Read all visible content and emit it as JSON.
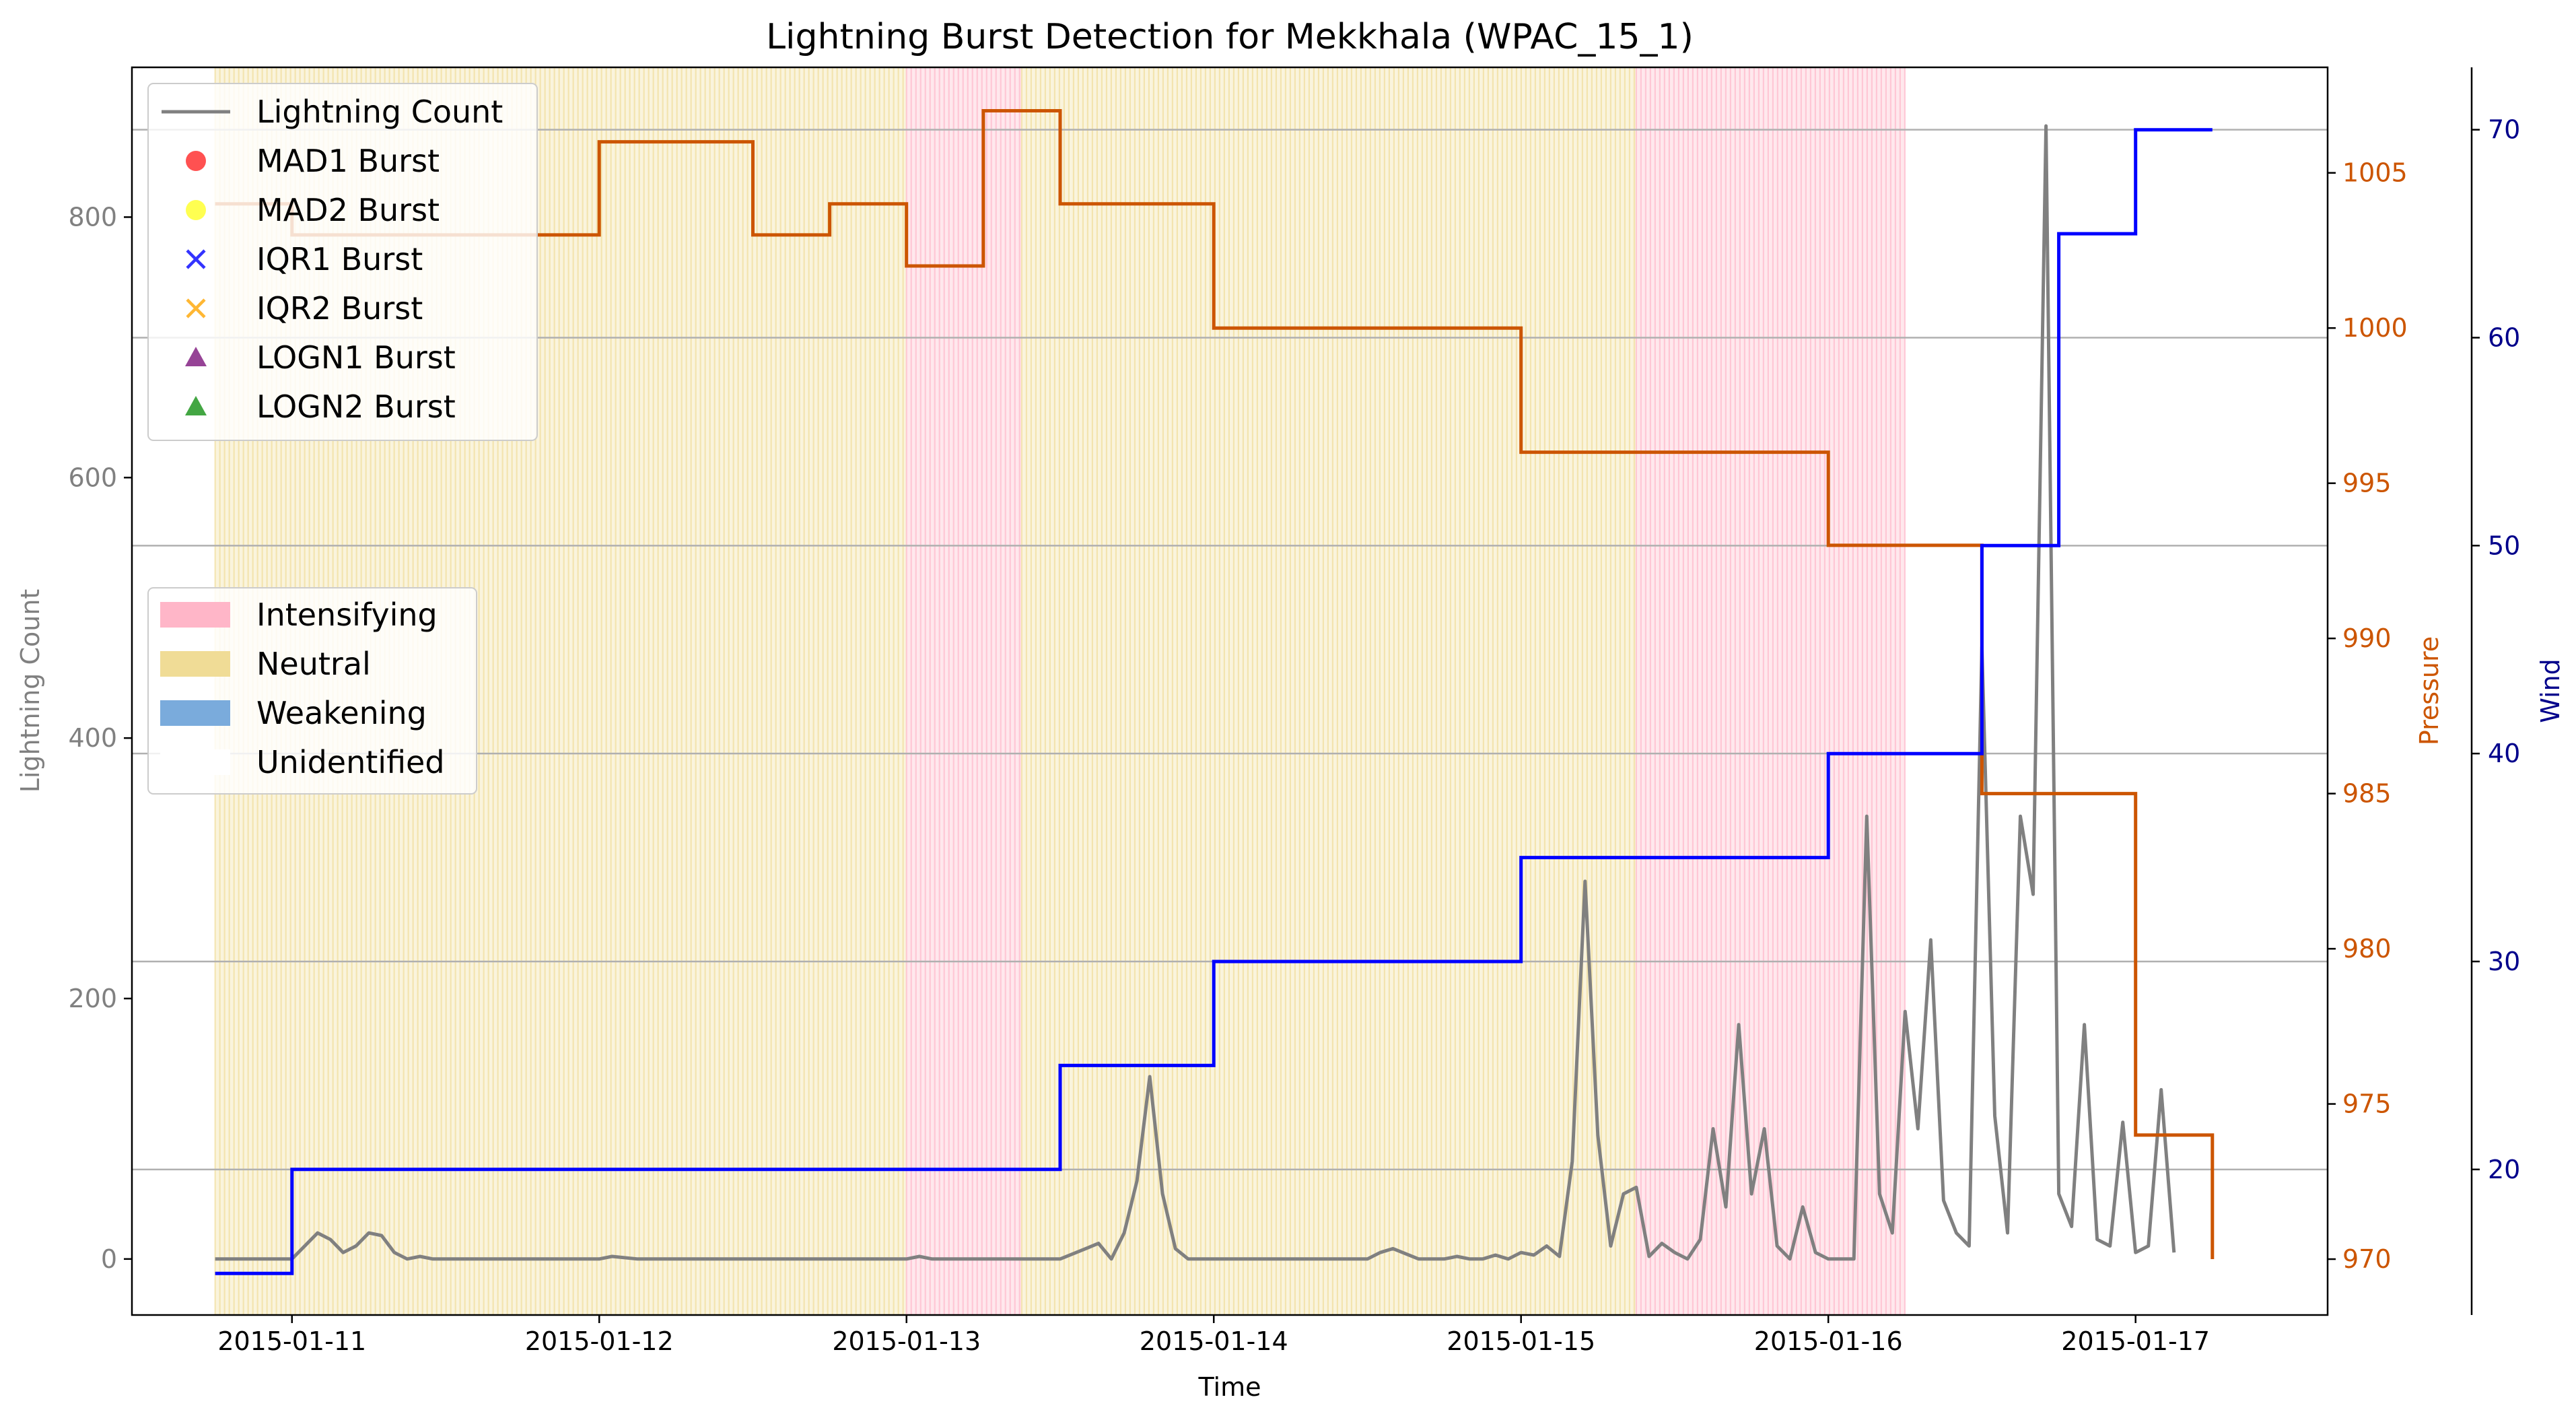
{
  "chart_data": {
    "type": "line",
    "title": "Lightning Burst Detection for Mekkhala (WPAC_15_1)",
    "xlabel": "Time",
    "ylabel": "Lightning Count",
    "ylabel_right": "Pressure",
    "ylabel_right2": "Wind",
    "x_ticks": [
      "2015-01-11",
      "2015-01-12",
      "2015-01-13",
      "2015-01-14",
      "2015-01-15",
      "2015-01-16",
      "2015-01-17"
    ],
    "xlim": [
      "2015-01-10T11:30",
      "2015-01-17T15:00"
    ],
    "ylim": [
      -43,
      915
    ],
    "ylim_right": [
      968.2,
      1008.4
    ],
    "ylim_right2": [
      13.0,
      73.0
    ],
    "y_ticks": [
      0,
      200,
      400,
      600,
      800
    ],
    "y_ticks_right": [
      970,
      975,
      980,
      985,
      990,
      995,
      1000,
      1005
    ],
    "y_ticks_right2": [
      20,
      30,
      40,
      50,
      60,
      70
    ],
    "grid": "horizontal lines at wind ticks",
    "colors": {
      "lightning": "#808080",
      "pressure": "#cc5500",
      "wind": "#0000ff",
      "intensifying": "#ffb6c8",
      "neutral": "#f0dc96",
      "weakening": "#7aabdc",
      "grid": "#b0b0b0",
      "pressure_axis": "#cc5500",
      "wind_axis": "#00008b",
      "left_axis": "#808080"
    },
    "legend_top": {
      "placement": "upper-left",
      "items": [
        {
          "label": "Lightning Count",
          "marker": "line",
          "color": "#808080"
        },
        {
          "label": "MAD1 Burst",
          "marker": "circle",
          "color": "#ff3333"
        },
        {
          "label": "MAD2 Burst",
          "marker": "circle",
          "color": "#ffff33"
        },
        {
          "label": "IQR1 Burst",
          "marker": "x",
          "color": "#3333ff"
        },
        {
          "label": "IQR2 Burst",
          "marker": "x",
          "color": "#ffb733"
        },
        {
          "label": "LOGN1 Burst",
          "marker": "triangle",
          "color": "#8b2f8b"
        },
        {
          "label": "LOGN2 Burst",
          "marker": "triangle",
          "color": "#2f9c2f"
        }
      ]
    },
    "legend_bottom": {
      "placement": "center-left",
      "items": [
        {
          "label": "Intensifying",
          "color": "#ffb6c8"
        },
        {
          "label": "Neutral",
          "color": "#f0dc96"
        },
        {
          "label": "Weakening",
          "color": "#7aabdc"
        },
        {
          "label": "Unidentified",
          "color": "#ffffff"
        }
      ]
    },
    "spans": [
      {
        "start": "2015-01-10T18:00",
        "end": "2015-01-13T00:00",
        "phase": "Neutral"
      },
      {
        "start": "2015-01-13T00:00",
        "end": "2015-01-13T09:00",
        "phase": "Intensifying"
      },
      {
        "start": "2015-01-13T09:00",
        "end": "2015-01-15T09:00",
        "phase": "Neutral"
      },
      {
        "start": "2015-01-15T09:00",
        "end": "2015-01-16T06:00",
        "phase": "Intensifying"
      }
    ],
    "series": [
      {
        "name": "Lightning Count",
        "axis": "left",
        "x": [
          "2015-01-10T18:00",
          "2015-01-11T00:00",
          "2015-01-11T02:00",
          "2015-01-11T03:00",
          "2015-01-11T04:00",
          "2015-01-11T05:00",
          "2015-01-11T06:00",
          "2015-01-11T07:00",
          "2015-01-11T08:00",
          "2015-01-11T09:00",
          "2015-01-11T10:00",
          "2015-01-11T11:00",
          "2015-01-11T12:00",
          "2015-01-11T13:00",
          "2015-01-11T14:00",
          "2015-01-11T16:00",
          "2015-01-12T00:00",
          "2015-01-12T01:00",
          "2015-01-12T03:00",
          "2015-01-13T00:00",
          "2015-01-13T01:00",
          "2015-01-13T02:00",
          "2015-01-13T04:00",
          "2015-01-13T12:00",
          "2015-01-13T14:00",
          "2015-01-13T15:00",
          "2015-01-13T16:00",
          "2015-01-13T17:00",
          "2015-01-13T18:00",
          "2015-01-13T19:00",
          "2015-01-13T20:00",
          "2015-01-13T21:00",
          "2015-01-13T22:00",
          "2015-01-13T23:00",
          "2015-01-14T00:00",
          "2015-01-14T02:00",
          "2015-01-14T06:00",
          "2015-01-14T10:00",
          "2015-01-14T12:00",
          "2015-01-14T13:00",
          "2015-01-14T14:00",
          "2015-01-14T16:00",
          "2015-01-14T17:00",
          "2015-01-14T18:00",
          "2015-01-14T19:00",
          "2015-01-14T20:00",
          "2015-01-14T21:00",
          "2015-01-14T22:00",
          "2015-01-14T23:00",
          "2015-01-15T00:00",
          "2015-01-15T01:00",
          "2015-01-15T02:00",
          "2015-01-15T03:00",
          "2015-01-15T04:00",
          "2015-01-15T05:00",
          "2015-01-15T06:00",
          "2015-01-15T07:00",
          "2015-01-15T08:00",
          "2015-01-15T09:00",
          "2015-01-15T10:00",
          "2015-01-15T11:00",
          "2015-01-15T12:00",
          "2015-01-15T13:00",
          "2015-01-15T14:00",
          "2015-01-15T15:00",
          "2015-01-15T16:00",
          "2015-01-15T17:00",
          "2015-01-15T18:00",
          "2015-01-15T19:00",
          "2015-01-15T20:00",
          "2015-01-15T21:00",
          "2015-01-15T22:00",
          "2015-01-15T23:00",
          "2015-01-16T00:00",
          "2015-01-16T01:00",
          "2015-01-16T02:00",
          "2015-01-16T03:00",
          "2015-01-16T04:00",
          "2015-01-16T05:00",
          "2015-01-16T06:00",
          "2015-01-16T07:00",
          "2015-01-16T08:00",
          "2015-01-16T09:00",
          "2015-01-16T10:00",
          "2015-01-16T11:00",
          "2015-01-16T12:00",
          "2015-01-16T13:00",
          "2015-01-16T14:00",
          "2015-01-16T15:00",
          "2015-01-16T16:00",
          "2015-01-16T17:00",
          "2015-01-16T18:00",
          "2015-01-16T19:00",
          "2015-01-16T20:00",
          "2015-01-16T21:00",
          "2015-01-16T22:00",
          "2015-01-16T23:00",
          "2015-01-17T00:00",
          "2015-01-17T01:00",
          "2015-01-17T02:00",
          "2015-01-17T03:00"
        ],
        "values": [
          0,
          0,
          20,
          15,
          5,
          10,
          20,
          18,
          5,
          0,
          2,
          0,
          0,
          0,
          0,
          0,
          0,
          2,
          0,
          0,
          2,
          0,
          0,
          0,
          8,
          12,
          0,
          20,
          60,
          140,
          50,
          8,
          0,
          0,
          0,
          0,
          0,
          0,
          0,
          5,
          8,
          0,
          0,
          0,
          2,
          0,
          0,
          3,
          0,
          5,
          3,
          10,
          2,
          75,
          290,
          95,
          10,
          50,
          55,
          2,
          12,
          5,
          0,
          15,
          100,
          40,
          180,
          50,
          100,
          10,
          0,
          40,
          5,
          0,
          0,
          0,
          340,
          50,
          20,
          190,
          100,
          245,
          45,
          20,
          10,
          470,
          110,
          20,
          340,
          280,
          870,
          50,
          25,
          180,
          15,
          10,
          105,
          5,
          10,
          130,
          5
        ]
      },
      {
        "name": "Pressure",
        "axis": "right",
        "step_x": [
          "2015-01-10T18:00",
          "2015-01-11T00:00",
          "2015-01-12T00:00",
          "2015-01-12T12:00",
          "2015-01-12T18:00",
          "2015-01-13T00:00",
          "2015-01-13T06:00",
          "2015-01-13T12:00",
          "2015-01-14T00:00",
          "2015-01-15T00:00",
          "2015-01-16T00:00",
          "2015-01-16T12:00",
          "2015-01-17T00:00",
          "2015-01-17T06:00"
        ],
        "values": [
          1004,
          1003,
          1006,
          1003,
          1004,
          1002,
          1007,
          1004,
          1000,
          996,
          993,
          985,
          974,
          970
        ]
      },
      {
        "name": "Wind",
        "axis": "right2",
        "step_x": [
          "2015-01-10T18:00",
          "2015-01-11T00:00",
          "2015-01-13T12:00",
          "2015-01-14T00:00",
          "2015-01-15T00:00",
          "2015-01-16T00:00",
          "2015-01-16T12:00",
          "2015-01-16T18:00",
          "2015-01-17T00:00",
          "2015-01-17T06:00"
        ],
        "values": [
          15,
          20,
          25,
          30,
          35,
          40,
          50,
          65,
          70,
          70
        ]
      }
    ]
  }
}
